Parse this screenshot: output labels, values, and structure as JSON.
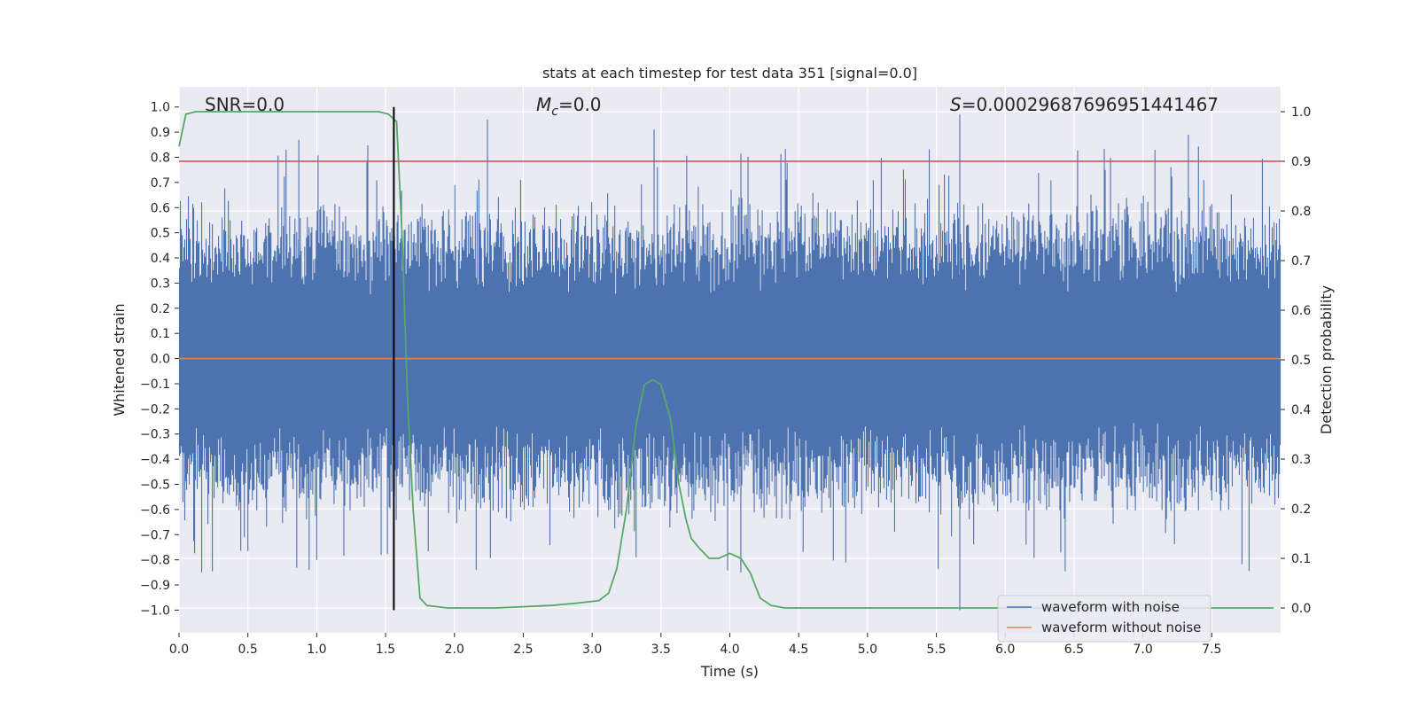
{
  "chart_data": {
    "type": "line",
    "title": "stats at each timestep for test data 351 [signal=0.0]",
    "xlabel": "Time (s)",
    "ylabel": "Whitened strain",
    "y2label": "Detection probability",
    "xlim": [
      0.0,
      8.0
    ],
    "ylim": [
      -1.09,
      1.08
    ],
    "y2lim": [
      -0.05,
      1.05
    ],
    "xticks": [
      "0.0",
      "0.5",
      "1.0",
      "1.5",
      "2.0",
      "2.5",
      "3.0",
      "3.5",
      "4.0",
      "4.5",
      "5.0",
      "5.5",
      "6.0",
      "6.5",
      "7.0",
      "7.5"
    ],
    "yticks": [
      "1.0",
      "0.9",
      "0.8",
      "0.7",
      "0.6",
      "0.5",
      "0.4",
      "0.3",
      "0.2",
      "0.1",
      "0.0",
      "−0.1",
      "−0.2",
      "−0.3",
      "−0.4",
      "−0.5",
      "−0.6",
      "−0.7",
      "−0.8",
      "−0.9",
      "−1.0"
    ],
    "y2ticks": [
      "1.0",
      "0.9",
      "0.8",
      "0.7",
      "0.6",
      "0.5",
      "0.4",
      "0.3",
      "0.2",
      "0.1",
      "0.0"
    ],
    "annotations": {
      "snr": "SNR=0.0",
      "mc_symbol": "M",
      "mc_sub": "c",
      "mc_value": "=0.0",
      "s_symbol": "S",
      "s_value": "=0.00029687696951441467"
    },
    "threshold": {
      "value": 0.9,
      "axis": "y2",
      "color": "#c44e52"
    },
    "vline": {
      "x": 1.56,
      "y_range": [
        -1.0,
        1.0
      ],
      "color": "#000000"
    },
    "series": [
      {
        "name": "waveform with noise",
        "axis": "y",
        "color": "#4c72b0",
        "style": "dense noise band, |value| mostly within 0.6, spikes near 1.0",
        "noise_envelope": 0.6,
        "max_spike": 0.97,
        "min_spike": -1.0
      },
      {
        "name": "waveform without noise",
        "axis": "y",
        "color": "#dd8452",
        "constant_value": 0.0
      },
      {
        "name": "detection probability",
        "axis": "y2",
        "color": "#55a868",
        "x": [
          0.0,
          0.05,
          0.12,
          0.3,
          0.6,
          1.0,
          1.3,
          1.45,
          1.52,
          1.58,
          1.62,
          1.66,
          1.7,
          1.75,
          1.8,
          1.95,
          2.3,
          2.7,
          2.9,
          3.05,
          3.12,
          3.18,
          3.25,
          3.32,
          3.38,
          3.44,
          3.5,
          3.57,
          3.63,
          3.68,
          3.72,
          3.78,
          3.85,
          3.92,
          4.0,
          4.08,
          4.15,
          4.22,
          4.3,
          4.4,
          5.0,
          6.0,
          7.0,
          7.95
        ],
        "values": [
          0.93,
          0.995,
          1.0,
          1.0,
          1.0,
          1.0,
          1.0,
          1.0,
          0.995,
          0.98,
          0.75,
          0.42,
          0.2,
          0.02,
          0.005,
          0.0,
          0.0,
          0.005,
          0.01,
          0.015,
          0.03,
          0.08,
          0.2,
          0.37,
          0.45,
          0.46,
          0.45,
          0.38,
          0.25,
          0.18,
          0.14,
          0.12,
          0.1,
          0.1,
          0.11,
          0.1,
          0.07,
          0.02,
          0.005,
          0.0,
          0.0,
          0.0,
          0.0,
          0.0
        ]
      }
    ],
    "legend": {
      "placement": "bottom-right",
      "entries": [
        {
          "label": "waveform with noise",
          "color": "#4c72b0"
        },
        {
          "label": "waveform without noise",
          "color": "#dd8452"
        }
      ]
    },
    "grid": true
  }
}
